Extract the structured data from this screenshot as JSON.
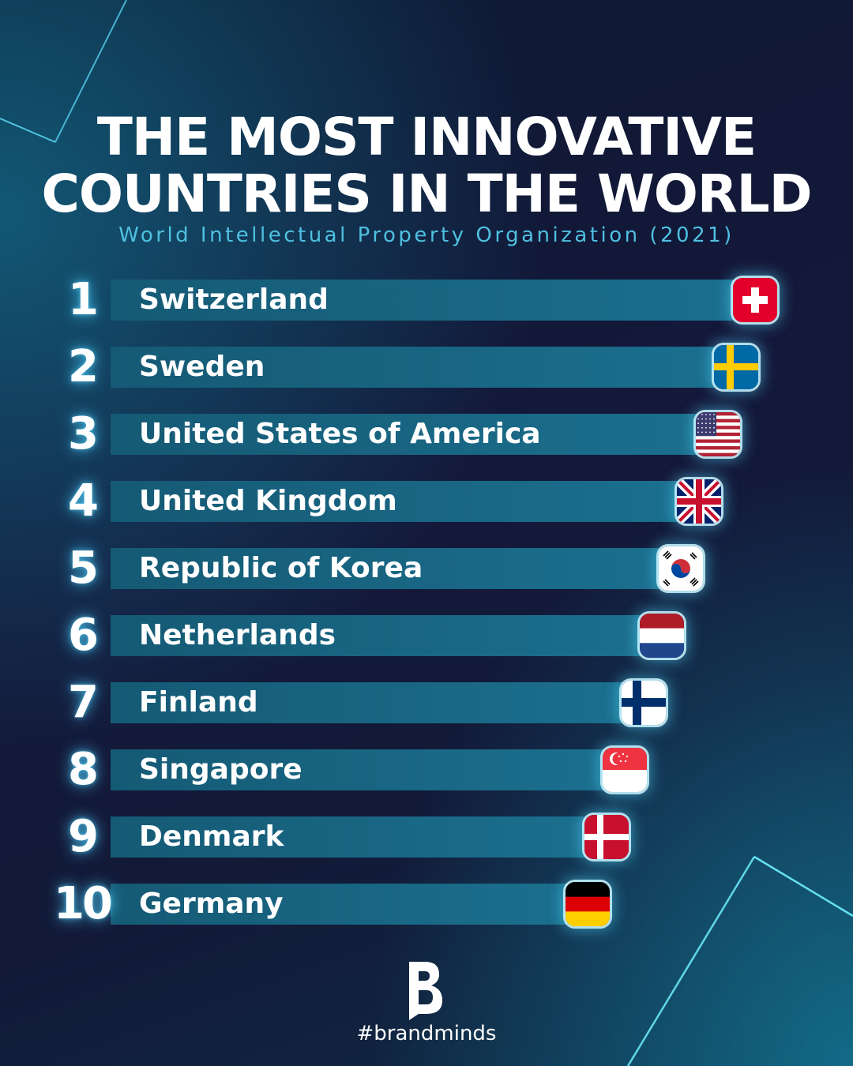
{
  "header": {
    "title_line1": "THE MOST INNOVATIVE",
    "title_line2": "COUNTRIES IN THE WORLD",
    "subtitle": "World Intellectual Property Organization (2021)"
  },
  "chart_data": {
    "type": "bar",
    "orientation": "horizontal",
    "categories": [
      "Switzerland",
      "Sweden",
      "United States of America",
      "United Kingdom",
      "Republic of Korea",
      "Netherlands",
      "Finland",
      "Singapore",
      "Denmark",
      "Germany"
    ],
    "ranks": [
      "1",
      "2",
      "3",
      "4",
      "5",
      "6",
      "7",
      "8",
      "9",
      "10"
    ],
    "values": [
      1,
      2,
      3,
      4,
      5,
      6,
      7,
      8,
      9,
      10
    ],
    "flags": [
      "switzerland-flag-icon",
      "sweden-flag-icon",
      "usa-flag-icon",
      "uk-flag-icon",
      "south-korea-flag-icon",
      "netherlands-flag-icon",
      "finland-flag-icon",
      "singapore-flag-icon",
      "denmark-flag-icon",
      "germany-flag-icon"
    ],
    "bar_color": "#1b6f8e",
    "rank_glow_color": "#50d2ff"
  },
  "footer": {
    "logo_icon": "brandminds-logo-icon",
    "hashtag": "#brandminds"
  }
}
